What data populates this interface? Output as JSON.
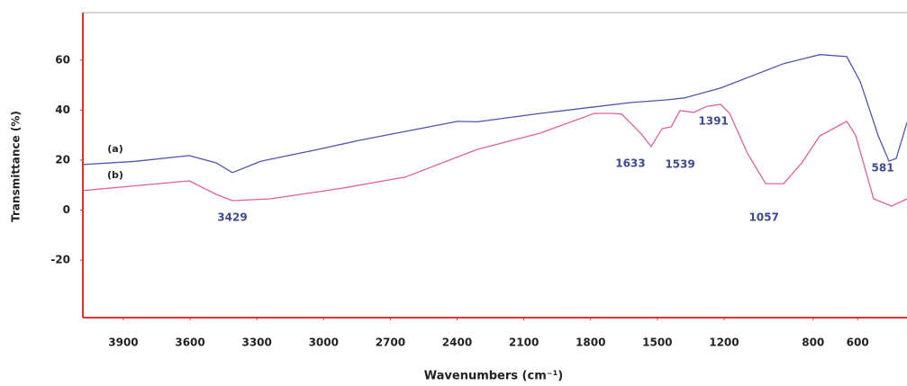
{
  "chart_data": {
    "type": "line",
    "xlabel": "Wavenumbers (cm⁻¹)",
    "ylabel": "Transmittance (%)",
    "xlim": [
      4082,
      378
    ],
    "ylim": [
      -43,
      79
    ],
    "xticks": [
      3900,
      3600,
      3300,
      3000,
      2700,
      2400,
      2100,
      1800,
      1500,
      1200,
      800,
      600
    ],
    "yticks": [
      -20,
      0,
      20,
      40,
      60
    ],
    "series": [
      {
        "name": "(a)",
        "color": "#4a55b0",
        "x": [
          4082,
          3847,
          3604,
          3483,
          3410,
          3281,
          3038,
          2835,
          2398,
          2309,
          2026,
          1783,
          1621,
          1459,
          1378,
          1216,
          932,
          770,
          649,
          588,
          507,
          459,
          426,
          378
        ],
        "values": [
          18.2,
          19.5,
          21.8,
          18.9,
          15,
          19.6,
          24,
          28,
          35.5,
          35.3,
          38.7,
          41.3,
          43,
          44.1,
          44.9,
          48.8,
          58.6,
          62.2,
          61.4,
          51.4,
          29.7,
          19.6,
          20.7,
          35.1
        ]
      },
      {
        "name": "(b)",
        "color": "#e0609a",
        "x": [
          4082,
          3604,
          3483,
          3410,
          3240,
          2916,
          2633,
          2309,
          2026,
          1783,
          1702,
          1661,
          1572,
          1528,
          1479,
          1438,
          1398,
          1337,
          1277,
          1216,
          1175,
          1094,
          1013,
          932,
          851,
          770,
          649,
          609,
          528,
          447,
          378
        ],
        "values": [
          7.8,
          11.7,
          6.3,
          3.8,
          4.5,
          8.8,
          13.2,
          24.3,
          30.8,
          38.7,
          38.7,
          38.4,
          30.5,
          25.4,
          32.6,
          33.3,
          39.8,
          39.1,
          41.5,
          42.3,
          38.7,
          22.5,
          10.6,
          10.6,
          18.9,
          29.7,
          35.5,
          30,
          4.5,
          1.6,
          4.5
        ]
      }
    ],
    "annotations": [
      {
        "text": "3429",
        "x": 3410,
        "y": -3.1
      },
      {
        "text": "1633",
        "x": 1621,
        "y": 18.6
      },
      {
        "text": "1539",
        "x": 1398,
        "y": 18.2
      },
      {
        "text": "1391",
        "x": 1248,
        "y": 35.5
      },
      {
        "text": "1057",
        "x": 1021,
        "y": -3.1
      },
      {
        "text": "581",
        "x": 487,
        "y": 16.8
      }
    ]
  }
}
